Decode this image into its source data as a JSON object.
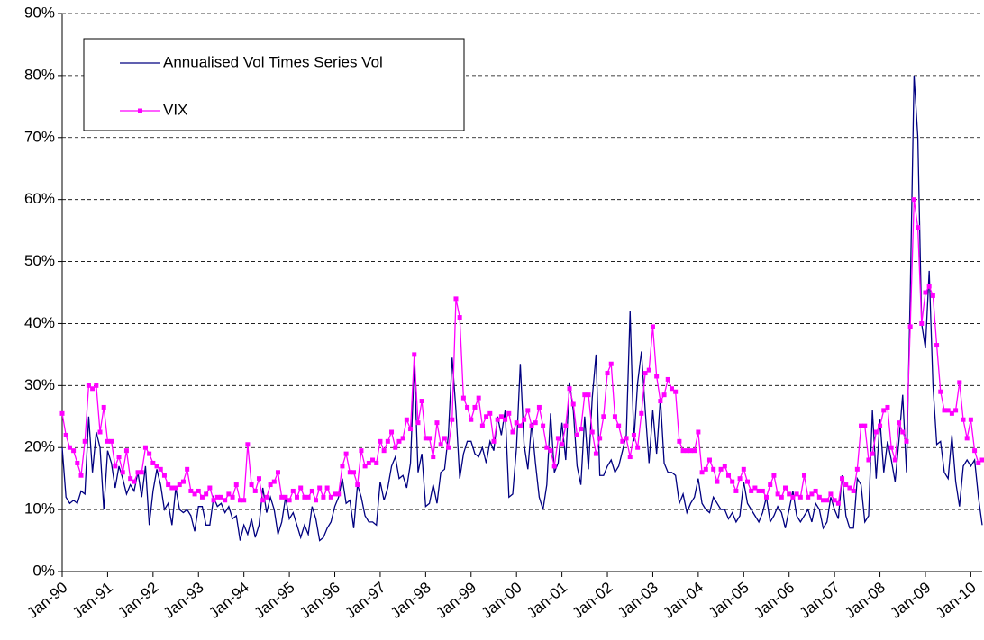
{
  "chart_data": {
    "type": "line",
    "categories": [
      "Jan-90",
      null,
      null,
      null,
      null,
      null,
      null,
      null,
      null,
      null,
      null,
      null,
      "Jan-91",
      null,
      null,
      null,
      null,
      null,
      null,
      null,
      null,
      null,
      null,
      null,
      "Jan-92",
      null,
      null,
      null,
      null,
      null,
      null,
      null,
      null,
      null,
      null,
      null,
      "Jan-93",
      null,
      null,
      null,
      null,
      null,
      null,
      null,
      null,
      null,
      null,
      null,
      "Jan-94",
      null,
      null,
      null,
      null,
      null,
      null,
      null,
      null,
      null,
      null,
      null,
      "Jan-95",
      null,
      null,
      null,
      null,
      null,
      null,
      null,
      null,
      null,
      null,
      null,
      "Jan-96",
      null,
      null,
      null,
      null,
      null,
      null,
      null,
      null,
      null,
      null,
      null,
      "Jan-97",
      null,
      null,
      null,
      null,
      null,
      null,
      null,
      null,
      null,
      null,
      null,
      "Jan-98",
      null,
      null,
      null,
      null,
      null,
      null,
      null,
      null,
      null,
      null,
      null,
      "Jan-99",
      null,
      null,
      null,
      null,
      null,
      null,
      null,
      null,
      null,
      null,
      null,
      "Jan-00",
      null,
      null,
      null,
      null,
      null,
      null,
      null,
      null,
      null,
      null,
      null,
      "Jan-01",
      null,
      null,
      null,
      null,
      null,
      null,
      null,
      null,
      null,
      null,
      null,
      "Jan-02",
      null,
      null,
      null,
      null,
      null,
      null,
      null,
      null,
      null,
      null,
      null,
      "Jan-03",
      null,
      null,
      null,
      null,
      null,
      null,
      null,
      null,
      null,
      null,
      null,
      "Jan-04",
      null,
      null,
      null,
      null,
      null,
      null,
      null,
      null,
      null,
      null,
      null,
      "Jan-05",
      null,
      null,
      null,
      null,
      null,
      null,
      null,
      null,
      null,
      null,
      null,
      "Jan-06",
      null,
      null,
      null,
      null,
      null,
      null,
      null,
      null,
      null,
      null,
      null,
      "Jan-07",
      null,
      null,
      null,
      null,
      null,
      null,
      null,
      null,
      null,
      null,
      null,
      "Jan-08",
      null,
      null,
      null,
      null,
      null,
      null,
      null,
      null,
      null,
      null,
      null,
      "Jan-09",
      null,
      null,
      null,
      null,
      null,
      null,
      null,
      null,
      null,
      null,
      null,
      "Jan-10",
      null,
      null,
      null
    ],
    "series": [
      {
        "name": "Annualised Vol Times Series Vol",
        "color": "#000080",
        "marker": false,
        "values": [
          20,
          12,
          11,
          11.5,
          11,
          13,
          12.5,
          25,
          16,
          22.5,
          20,
          10,
          19.5,
          17.5,
          13.5,
          17,
          15,
          12.5,
          14,
          13,
          16,
          12,
          17,
          7.5,
          13,
          16.5,
          14,
          10,
          11,
          7.5,
          13.5,
          10,
          9.5,
          10,
          9,
          6.5,
          10.5,
          10.5,
          7.5,
          7.5,
          12,
          10.5,
          11,
          9.5,
          10.5,
          8.5,
          9,
          5,
          7.5,
          6,
          8.5,
          5.5,
          7.5,
          13.5,
          9.5,
          12,
          10,
          6,
          8,
          12,
          8.5,
          9.5,
          7.5,
          5.5,
          7.5,
          6,
          10.5,
          8.5,
          5,
          5.5,
          7,
          8,
          10.5,
          12,
          15,
          11,
          11.5,
          7,
          14,
          12,
          9,
          8,
          8,
          7.5,
          14.5,
          11.5,
          13.5,
          17,
          18.5,
          15,
          15.5,
          13.5,
          17.5,
          33.5,
          16,
          19,
          10.5,
          11,
          14,
          11,
          16,
          16.5,
          22,
          34.5,
          26,
          15,
          19,
          21,
          21,
          19,
          18.5,
          20,
          17.5,
          21,
          19.5,
          25,
          22,
          26,
          12,
          12.5,
          20,
          33.5,
          20.5,
          16.5,
          24,
          17.5,
          12,
          10,
          14,
          25.5,
          16,
          17.5,
          24,
          18,
          30.5,
          26,
          17,
          14,
          25,
          16.5,
          28,
          35,
          15.5,
          15.5,
          17,
          18,
          16,
          17,
          19.5,
          22,
          42,
          21,
          30.5,
          35.5,
          26,
          17.5,
          26,
          19,
          28,
          17.5,
          16,
          16,
          15.5,
          11,
          12.5,
          9.5,
          11,
          12,
          15,
          11,
          10,
          9.5,
          12,
          11,
          10,
          10,
          8.5,
          9.5,
          8,
          9,
          14.5,
          11,
          10,
          9,
          8,
          9.5,
          12,
          8,
          9,
          10.5,
          9.5,
          7,
          10,
          13,
          9,
          8,
          9,
          10,
          8,
          11,
          10,
          7,
          8,
          12,
          10,
          8.5,
          15.5,
          9,
          7,
          7,
          15,
          14,
          8,
          9,
          26,
          15,
          24.5,
          16,
          21,
          18,
          14.5,
          21,
          28.5,
          16,
          45,
          80,
          70,
          40,
          36,
          48.5,
          30,
          20.5,
          21,
          16,
          15,
          22,
          14.5,
          10.5,
          17,
          18,
          17,
          18,
          12,
          7.5
        ]
      },
      {
        "name": "VIX",
        "color": "#ff00ff",
        "marker": true,
        "values": [
          25.5,
          22,
          20,
          19.5,
          17.5,
          15.5,
          21,
          30,
          29.5,
          30,
          22.5,
          26.5,
          21,
          21,
          17,
          18.5,
          16,
          19.5,
          15,
          14.5,
          16,
          16,
          20,
          19,
          17.5,
          17,
          16.5,
          15.5,
          14,
          13.5,
          13.5,
          14,
          14.5,
          16.5,
          13,
          12.5,
          13,
          12,
          12.5,
          13.5,
          11.5,
          12,
          12,
          11.5,
          12.5,
          12,
          14,
          11.5,
          11.5,
          20.5,
          14,
          13,
          15,
          11.5,
          12,
          14,
          14.5,
          16,
          12,
          12,
          11.5,
          13,
          12,
          13.5,
          12,
          12,
          13,
          11.5,
          13.5,
          12,
          13.5,
          12,
          12.5,
          12.5,
          17,
          19,
          16,
          16,
          14,
          19.5,
          17,
          17.5,
          18,
          17.5,
          21,
          19.5,
          21,
          22.5,
          20,
          21,
          21.5,
          24.5,
          23,
          35,
          24,
          27.5,
          21.5,
          21.5,
          18.5,
          24,
          20.5,
          21.5,
          20,
          24.5,
          44,
          41,
          28,
          26.5,
          24.5,
          26.5,
          28,
          23.5,
          25,
          25.5,
          21,
          24.5,
          25,
          24.5,
          25.5,
          22.5,
          24,
          23.5,
          24.5,
          26,
          23.5,
          24,
          26.5,
          23.5,
          20,
          19.5,
          17,
          21.5,
          20.5,
          23.5,
          29.5,
          27,
          22,
          23,
          28.5,
          28.5,
          22.5,
          19,
          21.5,
          25,
          32,
          33.5,
          25,
          23.5,
          21,
          21.5,
          18.5,
          22,
          20,
          25.5,
          32,
          32.5,
          39.5,
          31.5,
          27.5,
          28.5,
          31,
          29.5,
          29,
          21,
          19.5,
          19.5,
          19.5,
          19.5,
          22.5,
          16,
          16.5,
          18,
          16.5,
          14.5,
          16.5,
          17,
          15.5,
          14.5,
          13,
          15,
          16.5,
          14.5,
          13,
          13.5,
          13,
          13,
          12,
          14,
          15.5,
          12.5,
          12,
          13.5,
          12.5,
          12,
          12.5,
          12,
          15.5,
          12,
          12.5,
          13,
          12,
          11.5,
          11.5,
          12.5,
          11.5,
          11,
          15,
          14,
          13.5,
          13,
          16.5,
          23.5,
          23.5,
          18,
          19,
          22.5,
          23.5,
          26,
          26.5,
          20,
          18,
          24,
          22.5,
          21,
          39.5,
          60,
          55.5,
          40,
          45,
          46,
          44.5,
          36.5,
          29,
          26,
          26,
          25.5,
          26,
          30.5,
          24.5,
          21.5,
          24.5,
          19.5,
          17.5,
          18
        ]
      }
    ],
    "ylim": [
      0,
      90
    ],
    "yticks": [
      {
        "value": 0,
        "label": "0%"
      },
      {
        "value": 10,
        "label": "10%"
      },
      {
        "value": 20,
        "label": "20%"
      },
      {
        "value": 30,
        "label": "30%"
      },
      {
        "value": 40,
        "label": "40%"
      },
      {
        "value": 50,
        "label": "50%"
      },
      {
        "value": 60,
        "label": "60%"
      },
      {
        "value": 70,
        "label": "70%"
      },
      {
        "value": 80,
        "label": "80%"
      },
      {
        "value": 90,
        "label": "90%"
      }
    ],
    "grid": true,
    "legend": "top-left"
  }
}
